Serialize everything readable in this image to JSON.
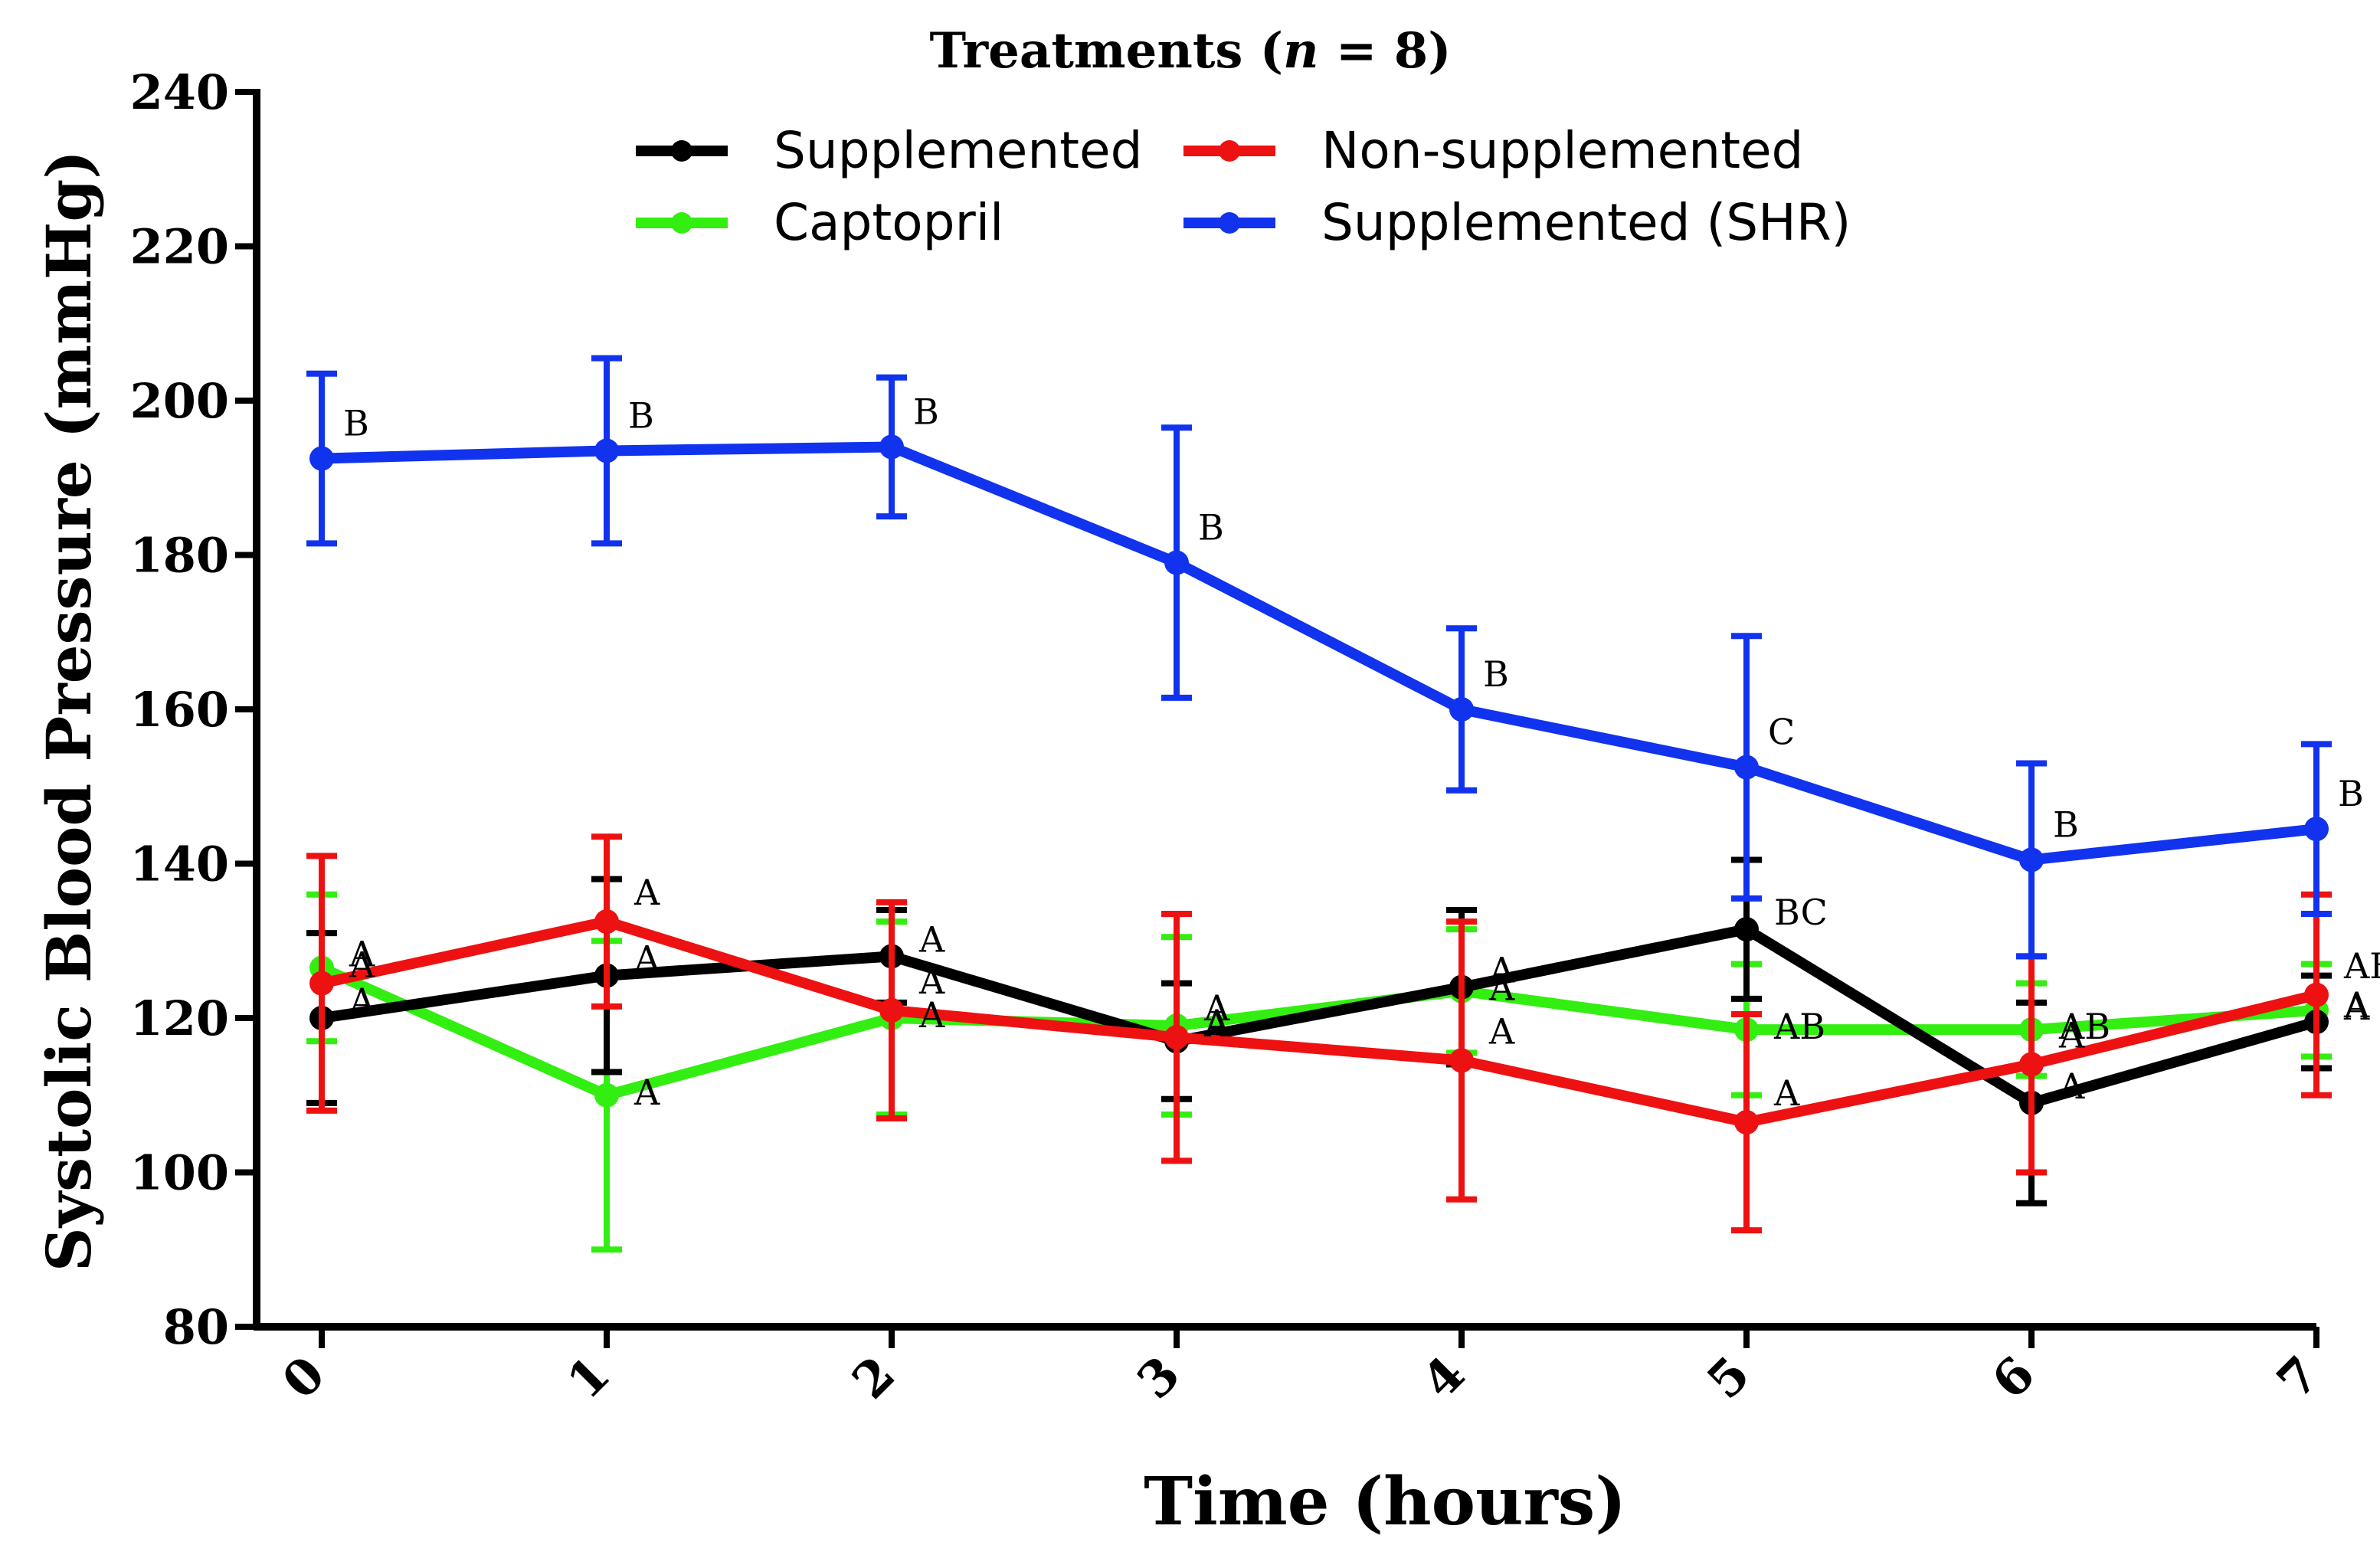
{
  "chart_data": {
    "type": "line",
    "title_prefix": "Treatments (",
    "title_italic": "n",
    "title_suffix": " = 8)",
    "xlabel": "Time (hours)",
    "ylabel": "Systolic Blood Pressure (mmHg)",
    "x": [
      0,
      1,
      2,
      3,
      4,
      5,
      6,
      7
    ],
    "x_tick_labels": [
      "0",
      "1",
      "2",
      "3",
      "4",
      "5",
      "6",
      "7"
    ],
    "ylim": [
      80,
      240
    ],
    "y_ticks": [
      80,
      100,
      120,
      140,
      160,
      180,
      200,
      220,
      240
    ],
    "y_tick_labels": [
      "80",
      "100",
      "120",
      "140",
      "160",
      "180",
      "200",
      "220",
      "240"
    ],
    "legend_position": "top",
    "series": [
      {
        "name": "Captopril",
        "color": "#33ee11",
        "values": [
          126.5,
          110,
          120,
          119,
          123.5,
          118.5,
          118.5,
          121
        ],
        "errors": [
          9.5,
          20,
          12.5,
          11.5,
          8,
          8.5,
          6,
          6
        ],
        "sig_labels": [
          "A",
          "A",
          "A",
          "A",
          "A",
          "AB",
          "AB",
          "A"
        ]
      },
      {
        "name": "Supplemented",
        "color": "#000000",
        "values": [
          120,
          125.5,
          128,
          117,
          124,
          131.5,
          109,
          119.5
        ],
        "errors": [
          11,
          12.5,
          6,
          7.5,
          10,
          9,
          13,
          6
        ],
        "sig_labels": [
          "A",
          "A",
          "A",
          "A",
          "A",
          "BC",
          "A",
          "A"
        ]
      },
      {
        "name": "Non-supplemented",
        "color": "#ee1111",
        "values": [
          124.5,
          132.5,
          121,
          117.5,
          114.5,
          106.5,
          114,
          123
        ],
        "errors": [
          16.5,
          11,
          14,
          16,
          18,
          14,
          14,
          13
        ],
        "sig_labels": [
          "A",
          "A",
          "A",
          "A",
          "A",
          "A",
          "A",
          "AB"
        ]
      },
      {
        "name": "Supplemented (SHR)",
        "color": "#1133ee",
        "values": [
          192.5,
          193.5,
          194,
          179,
          160,
          152.5,
          140.5,
          144.5
        ],
        "errors": [
          11,
          12,
          9,
          17.5,
          10.5,
          17,
          12.5,
          11
        ],
        "sig_labels": [
          "B",
          "B",
          "B",
          "B",
          "B",
          "C",
          "B",
          "B"
        ]
      }
    ]
  }
}
